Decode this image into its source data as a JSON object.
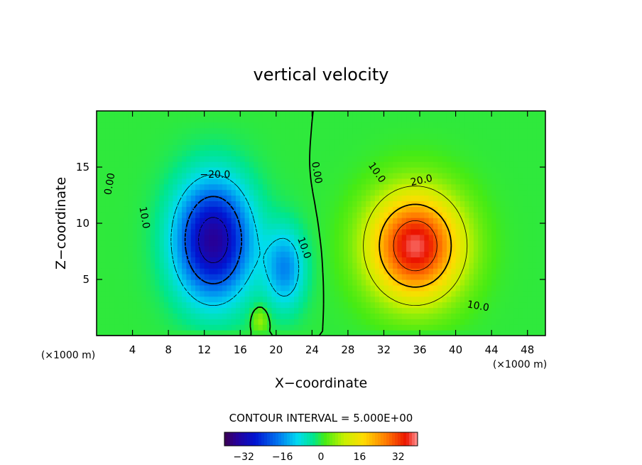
{
  "chart_data": {
    "type": "heatmap",
    "title": "vertical velocity",
    "xlabel": "X−coordinate",
    "ylabel": "Z−coordinate",
    "x_unit": "(×1000 m)",
    "y_unit": "(×1000 m)",
    "xlim": [
      0,
      50
    ],
    "ylim": [
      0,
      20
    ],
    "x_ticks": [
      4,
      8,
      12,
      16,
      20,
      24,
      28,
      32,
      36,
      40,
      44,
      48
    ],
    "y_ticks": [
      5,
      10,
      15
    ],
    "contour_interval_label": "CONTOUR INTERVAL = 5.000E+00",
    "colorbar": {
      "range": [
        -40,
        40
      ],
      "ticks": [
        -32,
        -16,
        0,
        16,
        32
      ],
      "tick_labels": [
        "−32",
        "−16",
        "0",
        "16",
        "32"
      ]
    },
    "features": [
      {
        "kind": "downdraft",
        "center_x": 13,
        "center_z": 8.5,
        "peak": -35
      },
      {
        "kind": "updraft",
        "center_x": 35.5,
        "center_z": 8,
        "peak": 38
      }
    ],
    "contour_labels": [
      {
        "text": "0.00",
        "x": 1.5,
        "z": 13.5,
        "angle": 80
      },
      {
        "text": "10.0",
        "x": 5.3,
        "z": 10.5,
        "angle": -80
      },
      {
        "text": "−20.0",
        "x": 13.2,
        "z": 14.3,
        "angle": 0
      },
      {
        "text": "0.00",
        "x": 24.5,
        "z": 14.5,
        "angle": -80
      },
      {
        "text": "10.0",
        "x": 23.1,
        "z": 7.8,
        "angle": -70
      },
      {
        "text": "10.0",
        "x": 31.2,
        "z": 14.5,
        "angle": -55
      },
      {
        "text": "20.0",
        "x": 36.2,
        "z": 13.8,
        "angle": 12
      },
      {
        "text": "10.0",
        "x": 42.5,
        "z": 2.6,
        "angle": -10
      }
    ]
  }
}
